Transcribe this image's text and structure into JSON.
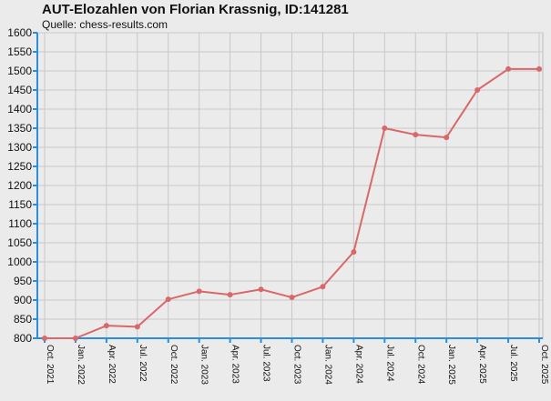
{
  "chart_data": {
    "type": "line",
    "title": "AUT-Elozahlen von Florian Krassnig, ID:141281",
    "subtitle": "Quelle: chess-results.com",
    "categories": [
      "Oct. 2021",
      "Jan. 2022",
      "Apr. 2022",
      "Jul. 2022",
      "Oct. 2022",
      "Jan. 2023",
      "Apr. 2023",
      "Jul. 2023",
      "Oct. 2023",
      "Jan. 2024",
      "Apr. 2024",
      "Jul. 2024",
      "Oct. 2024",
      "Jan. 2025",
      "Apr. 2025",
      "Jul. 2025",
      "Oct. 2025"
    ],
    "values": [
      800,
      800,
      833,
      830,
      902,
      923,
      914,
      928,
      907,
      935,
      1026,
      1350,
      1333,
      1326,
      1450,
      1505,
      1505
    ],
    "ylim": [
      800,
      1600
    ],
    "yticks": [
      800,
      850,
      900,
      950,
      1000,
      1050,
      1100,
      1150,
      1200,
      1250,
      1300,
      1350,
      1400,
      1450,
      1500,
      1550,
      1600
    ],
    "xlabel": "",
    "ylabel": "",
    "grid": true,
    "colors": {
      "line": "#d9686a",
      "marker": "#d9686a",
      "axis": "#2b8de0",
      "grid": "#c8c8c8",
      "plot_bg": "#ebebeb",
      "frame": "#bdbdbd"
    }
  }
}
